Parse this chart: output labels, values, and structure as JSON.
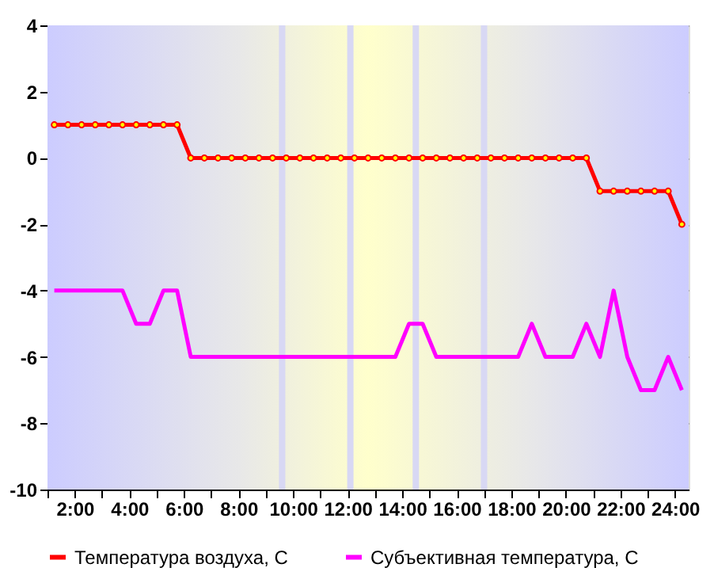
{
  "chart_data": {
    "type": "line",
    "x": [
      1.25,
      1.75,
      2.25,
      2.75,
      3.25,
      3.75,
      4.25,
      4.75,
      5.25,
      5.75,
      6.25,
      6.75,
      7.25,
      7.75,
      8.25,
      8.75,
      9.25,
      9.75,
      10.25,
      10.75,
      11.25,
      11.75,
      12.25,
      12.75,
      13.25,
      13.75,
      14.25,
      14.75,
      15.25,
      15.75,
      16.25,
      16.75,
      17.25,
      17.75,
      18.25,
      18.75,
      19.25,
      19.75,
      20.25,
      20.75,
      21.25,
      21.75,
      22.25,
      22.75,
      23.25,
      23.75,
      24.25
    ],
    "series": [
      {
        "name": "Температура воздуха, С",
        "color": "#ff0000",
        "marker": "circle",
        "values": [
          1,
          1,
          1,
          1,
          1,
          1,
          1,
          1,
          1,
          1,
          0,
          0,
          0,
          0,
          0,
          0,
          0,
          0,
          0,
          0,
          0,
          0,
          0,
          0,
          0,
          0,
          0,
          0,
          0,
          0,
          0,
          0,
          0,
          0,
          0,
          0,
          0,
          0,
          0,
          0,
          -1,
          -1,
          -1,
          -1,
          -1,
          -1,
          -2
        ]
      },
      {
        "name": "Субъективная температура, С",
        "color": "#ff00ff",
        "marker": "none",
        "values": [
          -4,
          -4,
          -4,
          -4,
          -4,
          -4,
          -5,
          -5,
          -4,
          -4,
          -6,
          -6,
          -6,
          -6,
          -6,
          -6,
          -6,
          -6,
          -6,
          -6,
          -6,
          -6,
          -6,
          -6,
          -6,
          -6,
          -5,
          -5,
          -6,
          -6,
          -6,
          -6,
          -6,
          -6,
          -6,
          -5,
          -6,
          -6,
          -6,
          -5,
          -6,
          -4,
          -6,
          -7,
          -7,
          -6,
          -7
        ]
      }
    ],
    "xlim": [
      1,
      24.5
    ],
    "xticks": [
      {
        "value": 1,
        "label": null
      },
      {
        "value": 2,
        "label": "2:00"
      },
      {
        "value": 3,
        "label": null
      },
      {
        "value": 4,
        "label": "4:00"
      },
      {
        "value": 5,
        "label": null
      },
      {
        "value": 6,
        "label": "6:00"
      },
      {
        "value": 7,
        "label": null
      },
      {
        "value": 8,
        "label": "8:00"
      },
      {
        "value": 9,
        "label": null
      },
      {
        "value": 10,
        "label": "10:00"
      },
      {
        "value": 11,
        "label": null
      },
      {
        "value": 12,
        "label": "12:00"
      },
      {
        "value": 13,
        "label": null
      },
      {
        "value": 14,
        "label": "14:00"
      },
      {
        "value": 15,
        "label": null
      },
      {
        "value": 16,
        "label": "16:00"
      },
      {
        "value": 17,
        "label": null
      },
      {
        "value": 18,
        "label": "18:00"
      },
      {
        "value": 19,
        "label": null
      },
      {
        "value": 20,
        "label": "20:00"
      },
      {
        "value": 21,
        "label": null
      },
      {
        "value": 22,
        "label": "22:00"
      },
      {
        "value": 23,
        "label": null
      },
      {
        "value": 24,
        "label": "24:00"
      }
    ],
    "ylim": [
      -10,
      4
    ],
    "yticks": [
      -10,
      -8,
      -6,
      -4,
      -2,
      0,
      2,
      4
    ],
    "grid": "y",
    "legend": "bottom",
    "line_style": "solid",
    "ref_lines": [
      {
        "axis": "x",
        "value": 9.6,
        "color": "#d8d8f4"
      },
      {
        "axis": "x",
        "value": 12.1,
        "color": "#d8d8f4"
      },
      {
        "axis": "x",
        "value": 14.5,
        "color": "#d8d8f4"
      },
      {
        "axis": "x",
        "value": 17.0,
        "color": "#d8d8f4"
      }
    ]
  }
}
